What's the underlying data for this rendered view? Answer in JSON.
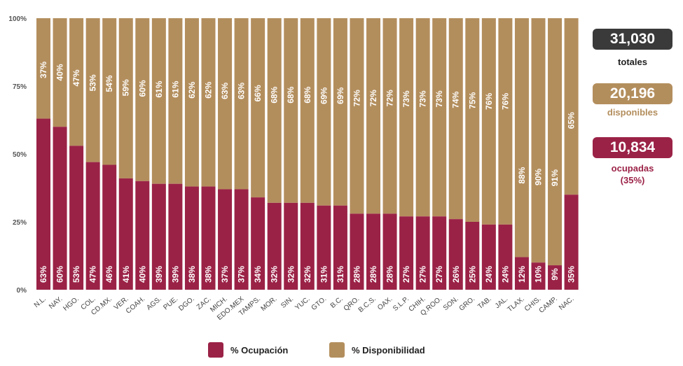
{
  "chart_data": {
    "type": "bar",
    "stacked": true,
    "percent_stacked": true,
    "categories": [
      "N.L.",
      "NAY.",
      "HGO.",
      "COL.",
      "CD.MX.",
      "VER.",
      "COAH.",
      "AGS.",
      "PUE.",
      "DGO.",
      "ZAC.",
      "MICH.",
      "EDO.MEX",
      "TAMPS.",
      "MOR.",
      "SIN.",
      "YUC.",
      "GTO.",
      "B.C.",
      "QRO.",
      "B.C.S.",
      "OAX.",
      "S.L.P.",
      "CHIH.",
      "Q.ROO.",
      "SON.",
      "GRO.",
      "TAB.",
      "JAL.",
      "TLAX.",
      "CHIS.",
      "CAMP.",
      "NAC."
    ],
    "series": [
      {
        "name": "% Ocupación",
        "color": "#9b2247",
        "values": [
          63,
          60,
          53,
          47,
          46,
          41,
          40,
          39,
          39,
          38,
          38,
          37,
          37,
          34,
          32,
          32,
          32,
          31,
          31,
          28,
          28,
          28,
          27,
          27,
          27,
          26,
          25,
          24,
          24,
          12,
          10,
          9,
          35
        ],
        "labels": [
          "63%",
          "60%",
          "53%",
          "47%",
          "46%",
          "41%",
          "40%",
          "39%",
          "39%",
          "38%",
          "38%",
          "37%",
          "37%",
          "34%",
          "32%",
          "32%",
          "32%",
          "31%",
          "31%",
          "28%",
          "28%",
          "28%",
          "27%",
          "27%",
          "27%",
          "26%",
          "25%",
          "24%",
          "24%",
          "12%",
          "10%",
          "9%",
          "35%"
        ]
      },
      {
        "name": "% Disponibilidad",
        "color": "#b38e5d",
        "values": [
          37,
          40,
          47,
          53,
          54,
          59,
          60,
          61,
          61,
          62,
          62,
          63,
          63,
          66,
          68,
          68,
          68,
          69,
          69,
          72,
          72,
          72,
          73,
          73,
          73,
          74,
          75,
          76,
          76,
          88,
          90,
          91,
          65
        ],
        "labels": [
          "37%",
          "40%",
          "47%",
          "53%",
          "54%",
          "59%",
          "60%",
          "61%",
          "61%",
          "62%",
          "62%",
          "63%",
          "63%",
          "66%",
          "68%",
          "68%",
          "68%",
          "69%",
          "69%",
          "72%",
          "72%",
          "72%",
          "73%",
          "73%",
          "73%",
          "74%",
          "75%",
          "76%",
          "76%",
          "88%",
          "90%",
          "91%",
          "65%"
        ]
      }
    ],
    "yticks": [
      "0%",
      "25%",
      "50%",
      "75%",
      "100%"
    ],
    "ylim": [
      0,
      100
    ],
    "legend_position": "bottom"
  },
  "stats": {
    "total_value": "31,030",
    "total_label": "totales",
    "available_value": "20,196",
    "available_label": "disponibles",
    "occupied_value": "10,834",
    "occupied_label": "ocupadas",
    "occupied_pct": "(35%)"
  },
  "colors": {
    "occupied": "#9b2247",
    "available": "#b38e5d",
    "dark": "#3a3a3a",
    "grid": "#bfbfbf"
  }
}
